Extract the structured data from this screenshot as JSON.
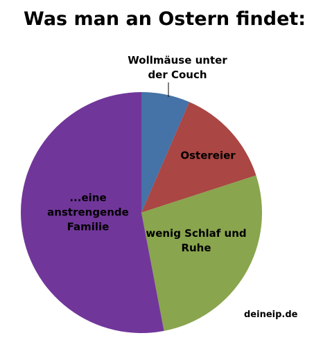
{
  "chart_data": {
    "type": "pie",
    "title": "Was man an Ostern findet:",
    "categories": [
      "Wollmäuse unter\nder Couch",
      "Ostereier",
      "wenig Schlaf und\nRuhe",
      "...eine\nanstrengende\nFamilie"
    ],
    "values": [
      6.5,
      13.5,
      27,
      53
    ],
    "colors": [
      "#4572a7",
      "#aa4643",
      "#89a54e",
      "#71369a"
    ],
    "source": "deineip.de"
  }
}
